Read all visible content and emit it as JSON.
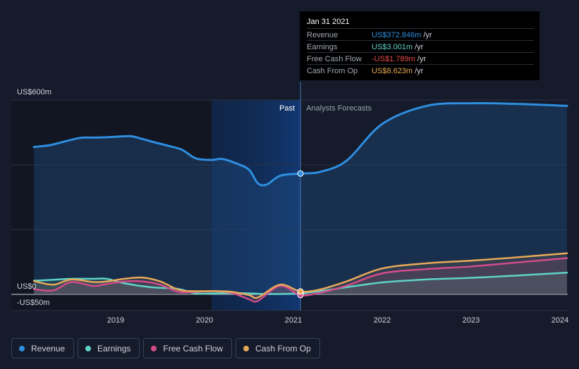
{
  "chart_data": {
    "type": "line",
    "y_unit_label_top": "US$600m",
    "y_zero_label": "US$0",
    "y_bottom_label": "-US$50m",
    "ylim": [
      -50,
      600
    ],
    "x_ticks": [
      "2019",
      "2020",
      "2021",
      "2022",
      "2023",
      "2024"
    ],
    "past_label": "Past",
    "forecast_label": "Analysts Forecasts",
    "divider_date": "2021.08",
    "highlight_start": "2020.08",
    "series": [
      {
        "name": "Revenue",
        "color": "#2e8ee0",
        "fill": true,
        "x": [
          2018.08,
          2018.25,
          2018.4,
          2018.6,
          2018.75,
          2018.9,
          2019.1,
          2019.2,
          2019.4,
          2019.6,
          2019.75,
          2019.9,
          2020.08,
          2020.2,
          2020.35,
          2020.5,
          2020.6,
          2020.7,
          2020.85,
          2021.08,
          2021.3,
          2021.6,
          2022.0,
          2022.5,
          2023.0,
          2023.5,
          2024.08
        ],
        "y": [
          455,
          460,
          470,
          483,
          484,
          485,
          488,
          487,
          472,
          458,
          446,
          420,
          415,
          418,
          405,
          385,
          343,
          339,
          366,
          373,
          378,
          413,
          526,
          582,
          590,
          588,
          582
        ]
      },
      {
        "name": "Earnings",
        "color": "#5fd3c7",
        "x": [
          2018.08,
          2018.3,
          2018.5,
          2018.75,
          2018.9,
          2019.1,
          2019.4,
          2019.7,
          2019.9,
          2020.1,
          2020.3,
          2020.5,
          2020.7,
          2020.85,
          2021.08,
          2021.3,
          2021.6,
          2022.0,
          2022.5,
          2023.0,
          2023.5,
          2024.08
        ],
        "y": [
          42,
          45,
          48,
          48,
          48,
          34,
          22,
          17,
          3,
          3,
          4,
          3,
          1,
          1,
          3,
          10,
          22,
          37,
          46,
          51,
          58,
          67
        ]
      },
      {
        "name": "Free Cash Flow",
        "color": "#d24c8a",
        "x": [
          2018.08,
          2018.3,
          2018.5,
          2018.75,
          2018.9,
          2019.1,
          2019.3,
          2019.5,
          2019.7,
          2019.85,
          2020.1,
          2020.3,
          2020.5,
          2020.6,
          2020.85,
          2021.08,
          2021.3,
          2021.6,
          2022.0,
          2022.5,
          2023.0,
          2023.5,
          2024.08
        ],
        "y": [
          16,
          12,
          38,
          26,
          32,
          40,
          40,
          30,
          8,
          7,
          10,
          5,
          -15,
          -20,
          26,
          -2,
          5,
          27,
          65,
          78,
          86,
          98,
          112
        ]
      },
      {
        "name": "Cash From Op",
        "color": "#e8a959",
        "x": [
          2018.08,
          2018.3,
          2018.5,
          2018.75,
          2018.9,
          2019.1,
          2019.3,
          2019.5,
          2019.7,
          2019.85,
          2020.1,
          2020.3,
          2020.5,
          2020.6,
          2020.85,
          2021.08,
          2021.3,
          2021.6,
          2022.0,
          2022.5,
          2023.0,
          2023.5,
          2024.08
        ],
        "y": [
          41,
          30,
          46,
          38,
          40,
          48,
          52,
          40,
          15,
          10,
          10,
          8,
          -2,
          -10,
          30,
          9,
          15,
          40,
          80,
          96,
          104,
          114,
          127
        ]
      }
    ],
    "highlight_point": {
      "date": "2021.08",
      "values": [
        373,
        3,
        -2,
        9
      ]
    }
  },
  "tooltip": {
    "date": "Jan 31 2021",
    "rows": [
      {
        "label": "Revenue",
        "value": "US$372.846m",
        "unit": "/yr",
        "color": "#2e8ee0"
      },
      {
        "label": "Earnings",
        "value": "US$3.001m",
        "unit": "/yr",
        "color": "#5fd3c7"
      },
      {
        "label": "Free Cash Flow",
        "value": "-US$1.789m",
        "unit": "/yr",
        "color": "#e64b4b"
      },
      {
        "label": "Cash From Op",
        "value": "US$8.623m",
        "unit": "/yr",
        "color": "#e8a959"
      }
    ]
  },
  "legend": [
    {
      "label": "Revenue",
      "color": "#2e8ee0"
    },
    {
      "label": "Earnings",
      "color": "#5fd3c7"
    },
    {
      "label": "Free Cash Flow",
      "color": "#d24c8a"
    },
    {
      "label": "Cash From Op",
      "color": "#e8a959"
    }
  ]
}
